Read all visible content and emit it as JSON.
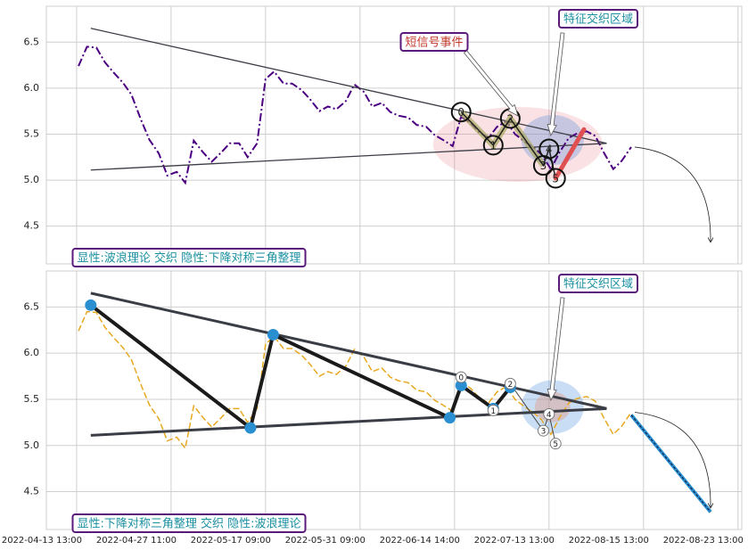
{
  "chart_data": [
    {
      "type": "line",
      "series": [
        {
          "color": "#4b0082",
          "x": [
            2,
            11,
            21,
            30,
            40,
            49,
            58,
            68,
            77,
            87,
            96,
            106,
            115,
            124,
            134,
            143,
            153,
            162,
            172,
            181,
            191,
            200,
            209,
            219,
            228,
            238,
            247,
            257,
            266,
            275,
            285,
            294,
            304,
            313,
            323,
            332,
            341,
            351,
            360,
            370,
            379,
            389,
            398,
            407,
            417,
            426,
            436,
            445,
            455,
            464,
            474,
            483,
            492,
            502,
            511,
            521,
            530,
            540,
            549,
            558,
            568,
            577,
            587
          ],
          "values": [
            6.24,
            6.45,
            6.44,
            6.28,
            6.16,
            6.06,
            5.93,
            5.66,
            5.44,
            5.29,
            5.05,
            5.09,
            4.97,
            5.43,
            5.3,
            5.2,
            5.3,
            5.4,
            5.4,
            5.25,
            5.4,
            6.1,
            6.18,
            6.05,
            6.05,
            5.98,
            5.88,
            5.75,
            5.8,
            5.77,
            5.86,
            6.04,
            5.96,
            5.8,
            5.84,
            5.74,
            5.7,
            5.68,
            5.6,
            5.58,
            5.49,
            5.43,
            5.37,
            5.69,
            5.62,
            5.52,
            5.46,
            5.58,
            5.64,
            5.5,
            5.42,
            5.36,
            5.28,
            5.12,
            5.3,
            5.46,
            5.51,
            5.53,
            5.48,
            5.3,
            5.12,
            5.21,
            5.36
          ]
        }
      ],
      "trend_lines": [
        {
          "x": [
            15,
            561
          ],
          "values": [
            6.65,
            5.4
          ]
        },
        {
          "x": [
            15,
            561
          ],
          "values": [
            5.11,
            5.4
          ]
        }
      ],
      "waves": {
        "labels": [
          "0",
          "1",
          "2",
          "3",
          "4",
          "5"
        ],
        "x": [
          407,
          441,
          459,
          494,
          500,
          507
        ],
        "values": [
          5.74,
          5.38,
          5.67,
          5.16,
          5.34,
          5.02
        ]
      },
      "signal_line": {
        "x": [
          507,
          537
        ],
        "values": [
          5.02,
          5.55
        ]
      },
      "annotations": [
        "特征交织区域",
        "短信号事件",
        "显性:波浪理论 交织 隐性:下降对称三角整理"
      ],
      "xlim": [
        -32,
        704
      ],
      "xticks": [
        0,
        100,
        200,
        300,
        400,
        500,
        600,
        700
      ],
      "ylim": [
        4.09,
        6.89
      ],
      "yticks": [
        4.5,
        {
          "value": 5,
          "label": "5.0"
        },
        5.5,
        {
          "value": 6,
          "label": "6.0"
        },
        6.5
      ],
      "grid": true
    },
    {
      "type": "line",
      "series": [
        {
          "color": "#e8a820",
          "x": [
            2,
            11,
            21,
            30,
            40,
            49,
            58,
            68,
            77,
            87,
            96,
            106,
            115,
            124,
            134,
            143,
            153,
            162,
            172,
            181,
            191,
            200,
            209,
            219,
            228,
            238,
            247,
            257,
            266,
            275,
            285,
            294,
            304,
            313,
            323,
            332,
            341,
            351,
            360,
            370,
            379,
            389,
            398,
            407,
            417,
            426,
            436,
            445,
            455,
            464,
            474,
            483,
            492,
            502,
            511,
            521,
            530,
            540,
            549,
            558,
            568,
            577,
            587
          ],
          "values": [
            6.24,
            6.45,
            6.44,
            6.28,
            6.16,
            6.06,
            5.93,
            5.66,
            5.44,
            5.29,
            5.05,
            5.09,
            4.97,
            5.43,
            5.3,
            5.2,
            5.3,
            5.4,
            5.4,
            5.25,
            5.4,
            6.1,
            6.18,
            6.05,
            6.05,
            5.98,
            5.88,
            5.75,
            5.8,
            5.77,
            5.86,
            6.04,
            5.96,
            5.8,
            5.84,
            5.74,
            5.7,
            5.68,
            5.6,
            5.58,
            5.49,
            5.43,
            5.37,
            5.69,
            5.62,
            5.52,
            5.46,
            5.58,
            5.64,
            5.5,
            5.42,
            5.36,
            5.28,
            5.12,
            5.3,
            5.46,
            5.51,
            5.53,
            5.48,
            5.3,
            5.12,
            5.21,
            5.36
          ]
        }
      ],
      "trend_lines": [
        {
          "x": [
            15,
            561
          ],
          "values": [
            6.65,
            5.4
          ]
        },
        {
          "x": [
            15,
            561
          ],
          "values": [
            5.11,
            5.4
          ]
        }
      ],
      "swings": {
        "x": [
          15,
          184,
          208,
          395,
          407,
          441,
          459
        ],
        "values": [
          6.52,
          5.19,
          6.2,
          5.3,
          5.65,
          5.4,
          5.63
        ]
      },
      "waves": {
        "labels": [
          "0",
          "1",
          "2",
          "3",
          "4",
          "5"
        ],
        "x": [
          407,
          441,
          459,
          494,
          500,
          507
        ],
        "values": [
          5.74,
          5.38,
          5.67,
          5.16,
          5.34,
          5.02
        ]
      },
      "forecast_line": {
        "x": [
          587,
          671
        ],
        "values": [
          5.33,
          4.28
        ]
      },
      "annotations": [
        "特征交织区域",
        "显性:下降对称三角整理 交织 隐性:波浪理论"
      ],
      "xlim": [
        -32,
        704
      ],
      "xticks": [
        {
          "value": 0,
          "label": "2022-04-13 13:00"
        },
        {
          "value": 100,
          "label": "2022-04-27 11:00"
        },
        {
          "value": 200,
          "label": "2022-05-17 09:00"
        },
        {
          "value": 300,
          "label": "2022-05-31 09:00"
        },
        {
          "value": 400,
          "label": "2022-06-14 14:00"
        },
        {
          "value": 500,
          "label": "2022-07-13 13:00"
        },
        {
          "value": 600,
          "label": "2022-08-15 13:00"
        },
        {
          "value": 700,
          "label": "2022-08-23 13:00"
        }
      ],
      "ylim": [
        4.09,
        6.89
      ],
      "yticks": [
        4.5,
        {
          "value": 5,
          "label": "5.0"
        },
        5.5,
        {
          "value": 6,
          "label": "6.0"
        },
        6.5
      ],
      "grid": true
    }
  ]
}
